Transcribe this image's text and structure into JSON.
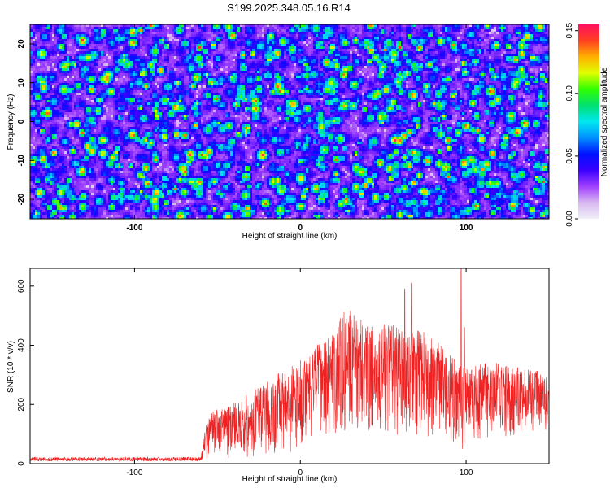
{
  "title": "S199.2025.348.05.16.R14",
  "colors": {
    "snr_line": "#ee2222",
    "colormap": [
      "#f0f0f8",
      "#d8b8f0",
      "#a040ff",
      "#3a00ff",
      "#0010ff",
      "#0090ff",
      "#00e8f0",
      "#00e070",
      "#30ff00",
      "#e0ff00",
      "#ffb000",
      "#ff4020",
      "#ff1060"
    ]
  },
  "chart_data": [
    {
      "type": "heatmap",
      "title": "",
      "xlabel": "Height of straight line (km)",
      "ylabel": "Frequency (Hz)",
      "xlim": [
        -163,
        150
      ],
      "ylim": [
        -25,
        25
      ],
      "x_ticks": [
        -100,
        0,
        100
      ],
      "y_ticks": [
        -20,
        -10,
        0,
        10,
        20
      ],
      "colorbar": {
        "label": "Normalized spectral amplitude",
        "range": [
          0,
          0.155
        ],
        "ticks": [
          "0.00",
          "0.05",
          "0.10",
          "0.15"
        ],
        "tick_values": [
          0,
          0.05,
          0.1,
          0.15
        ]
      },
      "z_description": "noise-like amplitude field, mostly 0.02-0.07 with sparse peaks up to ~0.15"
    },
    {
      "type": "line",
      "title": "",
      "xlabel": "Height of straight line (km)",
      "ylabel": "SNR (10 * v/v)",
      "xlim": [
        -163,
        150
      ],
      "ylim": [
        0,
        660
      ],
      "x_ticks": [
        -100,
        0,
        100
      ],
      "y_ticks": [
        0,
        200,
        400,
        600
      ],
      "series": [
        {
          "envelope_x": [
            -163,
            -60,
            -56,
            -45,
            -30,
            -15,
            0,
            10,
            20,
            28,
            35,
            45,
            55,
            65,
            75,
            85,
            95,
            100,
            110,
            120,
            130,
            140,
            150
          ],
          "envelope_upper": [
            25,
            25,
            175,
            190,
            240,
            300,
            350,
            400,
            470,
            525,
            505,
            480,
            470,
            450,
            450,
            400,
            340,
            330,
            340,
            340,
            330,
            320,
            310
          ],
          "envelope_lower": [
            5,
            5,
            10,
            15,
            20,
            25,
            40,
            60,
            90,
            110,
            100,
            90,
            80,
            70,
            70,
            60,
            40,
            40,
            70,
            80,
            90,
            100,
            100
          ],
          "spikes": [
            {
              "x": 67,
              "y": 610
            },
            {
              "x": 63,
              "y": 590
            },
            {
              "x": 97,
              "y": 660
            },
            {
              "x": 99,
              "y": 460
            }
          ]
        }
      ]
    }
  ]
}
